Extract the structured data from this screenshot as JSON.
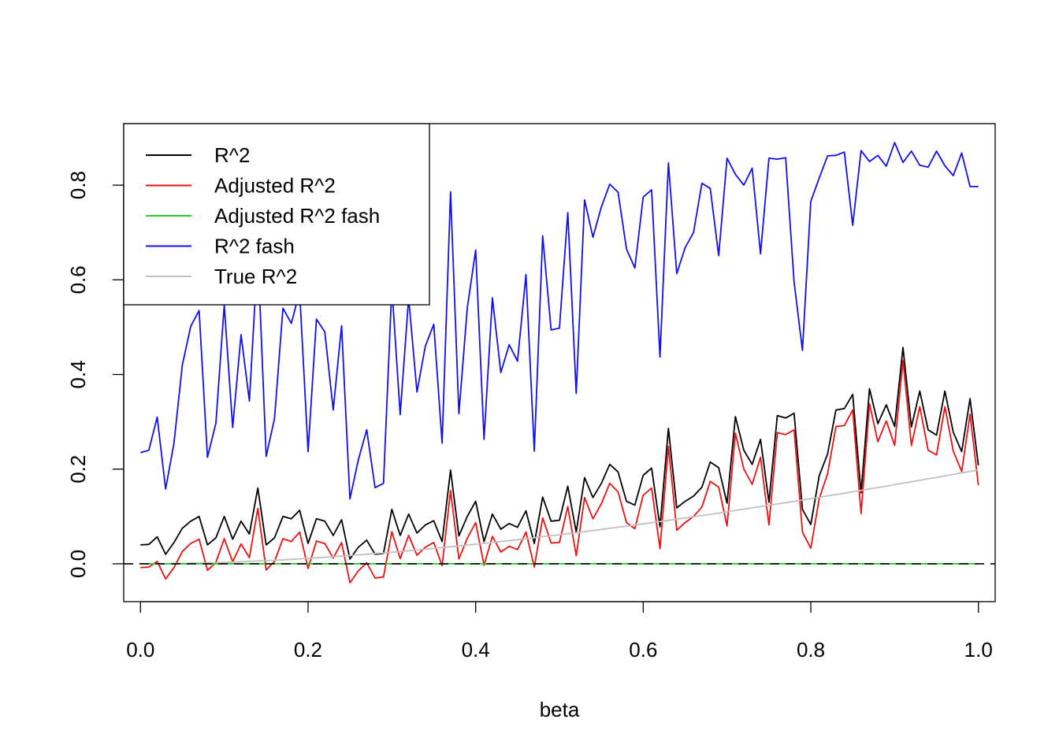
{
  "chart_data": {
    "type": "line",
    "title": "",
    "xlabel": "beta",
    "ylabel": "",
    "xlim": [
      -0.02,
      1.02
    ],
    "ylim": [
      -0.08,
      0.93
    ],
    "x_ticks": [
      0.0,
      0.2,
      0.4,
      0.6,
      0.8,
      1.0
    ],
    "x_tick_labels": [
      "0.0",
      "0.2",
      "0.4",
      "0.6",
      "0.8",
      "1.0"
    ],
    "y_ticks": [
      0.0,
      0.2,
      0.4,
      0.6,
      0.8
    ],
    "y_tick_labels": [
      "0.0",
      "0.2",
      "0.4",
      "0.6",
      "0.8"
    ],
    "grid": false,
    "legend_position": "top-left",
    "reference_line": {
      "y": 0,
      "style": "dashed",
      "color": "#000000"
    },
    "x": [
      0.0,
      0.01,
      0.02,
      0.03,
      0.04,
      0.05,
      0.06,
      0.07,
      0.08,
      0.09,
      0.1,
      0.11,
      0.12,
      0.13,
      0.14,
      0.15,
      0.16,
      0.17,
      0.18,
      0.19,
      0.2,
      0.21,
      0.22,
      0.23,
      0.24,
      0.25,
      0.26,
      0.27,
      0.28,
      0.29,
      0.3,
      0.31,
      0.32,
      0.33,
      0.34,
      0.35,
      0.36,
      0.37,
      0.38,
      0.39,
      0.4,
      0.41,
      0.42,
      0.43,
      0.44,
      0.45,
      0.46,
      0.47,
      0.48,
      0.49,
      0.5,
      0.51,
      0.52,
      0.53,
      0.54,
      0.55,
      0.56,
      0.57,
      0.58,
      0.59,
      0.6,
      0.61,
      0.62,
      0.63,
      0.64,
      0.65,
      0.66,
      0.67,
      0.68,
      0.69,
      0.7,
      0.71,
      0.72,
      0.73,
      0.74,
      0.75,
      0.76,
      0.77,
      0.78,
      0.79,
      0.8,
      0.81,
      0.82,
      0.83,
      0.84,
      0.85,
      0.86,
      0.87,
      0.88,
      0.89,
      0.9,
      0.91,
      0.92,
      0.93,
      0.94,
      0.95,
      0.96,
      0.97,
      0.98,
      0.99,
      1.0
    ],
    "series": [
      {
        "name": "R^2",
        "color": "#000000",
        "values": [
          0.04,
          0.041,
          0.057,
          0.02,
          0.045,
          0.075,
          0.09,
          0.1,
          0.04,
          0.055,
          0.1,
          0.052,
          0.09,
          0.063,
          0.16,
          0.04,
          0.055,
          0.1,
          0.095,
          0.113,
          0.043,
          0.095,
          0.09,
          0.06,
          0.093,
          0.01,
          0.035,
          0.05,
          0.02,
          0.022,
          0.115,
          0.06,
          0.105,
          0.065,
          0.082,
          0.091,
          0.047,
          0.198,
          0.059,
          0.1,
          0.132,
          0.047,
          0.105,
          0.073,
          0.085,
          0.077,
          0.112,
          0.043,
          0.141,
          0.09,
          0.092,
          0.164,
          0.067,
          0.182,
          0.14,
          0.17,
          0.21,
          0.194,
          0.132,
          0.124,
          0.187,
          0.202,
          0.078,
          0.286,
          0.118,
          0.132,
          0.143,
          0.162,
          0.215,
          0.203,
          0.128,
          0.311,
          0.24,
          0.21,
          0.263,
          0.13,
          0.313,
          0.308,
          0.318,
          0.115,
          0.083,
          0.186,
          0.232,
          0.325,
          0.328,
          0.358,
          0.15,
          0.37,
          0.296,
          0.336,
          0.29,
          0.457,
          0.289,
          0.365,
          0.283,
          0.272,
          0.365,
          0.278,
          0.237,
          0.349,
          0.208
        ]
      },
      {
        "name": "Adjusted R^2",
        "color": "#ee1111",
        "values": [
          -0.008,
          -0.007,
          0.005,
          -0.032,
          -0.008,
          0.026,
          0.043,
          0.052,
          -0.014,
          0.003,
          0.053,
          0.004,
          0.042,
          0.013,
          0.117,
          -0.013,
          0.005,
          0.053,
          0.047,
          0.067,
          -0.01,
          0.048,
          0.043,
          0.012,
          0.045,
          -0.04,
          -0.015,
          0.002,
          -0.03,
          -0.028,
          0.068,
          0.011,
          0.06,
          0.018,
          0.035,
          0.045,
          -0.004,
          0.155,
          0.01,
          0.054,
          0.087,
          -0.003,
          0.058,
          0.025,
          0.037,
          0.03,
          0.067,
          -0.007,
          0.097,
          0.044,
          0.045,
          0.121,
          0.017,
          0.14,
          0.095,
          0.127,
          0.17,
          0.152,
          0.087,
          0.074,
          0.145,
          0.16,
          0.032,
          0.248,
          0.071,
          0.087,
          0.1,
          0.12,
          0.174,
          0.162,
          0.08,
          0.276,
          0.2,
          0.168,
          0.225,
          0.082,
          0.277,
          0.273,
          0.283,
          0.067,
          0.033,
          0.138,
          0.19,
          0.29,
          0.292,
          0.325,
          0.106,
          0.338,
          0.258,
          0.302,
          0.25,
          0.43,
          0.25,
          0.332,
          0.24,
          0.23,
          0.332,
          0.238,
          0.195,
          0.316,
          0.166
        ]
      },
      {
        "name": "Adjusted R^2 fash",
        "color": "#22cc22",
        "values": [
          0,
          0,
          0,
          0,
          0,
          0,
          0,
          0,
          0,
          0,
          0,
          0,
          0,
          0,
          0,
          0,
          0,
          0,
          0,
          0,
          0,
          0,
          0,
          0,
          0,
          0,
          0,
          0,
          0,
          0,
          0,
          0,
          0,
          0,
          0,
          0,
          0,
          0,
          0,
          0,
          0,
          0,
          0,
          0,
          0,
          0,
          0,
          0,
          0,
          0,
          0,
          0,
          0,
          0,
          0,
          0,
          0,
          0,
          0,
          0,
          0,
          0,
          0,
          0,
          0,
          0,
          0,
          0,
          0,
          0,
          0,
          0,
          0,
          0,
          0,
          0,
          0,
          0,
          0,
          0,
          0,
          0,
          0,
          0,
          0,
          0,
          0,
          0,
          0,
          0,
          0,
          0,
          0,
          0,
          0,
          0,
          0,
          0,
          0,
          0,
          0
        ]
      },
      {
        "name": "R^2 fash",
        "color": "#1010ee",
        "values": [
          0.235,
          0.24,
          0.31,
          0.158,
          0.255,
          0.42,
          0.502,
          0.535,
          0.225,
          0.297,
          0.547,
          0.288,
          0.484,
          0.344,
          0.66,
          0.227,
          0.307,
          0.54,
          0.508,
          0.575,
          0.237,
          0.517,
          0.49,
          0.325,
          0.503,
          0.137,
          0.22,
          0.283,
          0.161,
          0.17,
          0.585,
          0.315,
          0.562,
          0.363,
          0.46,
          0.506,
          0.255,
          0.786,
          0.317,
          0.54,
          0.663,
          0.263,
          0.562,
          0.404,
          0.463,
          0.428,
          0.611,
          0.238,
          0.693,
          0.494,
          0.498,
          0.742,
          0.36,
          0.769,
          0.69,
          0.754,
          0.802,
          0.785,
          0.665,
          0.625,
          0.775,
          0.79,
          0.437,
          0.847,
          0.613,
          0.668,
          0.7,
          0.804,
          0.793,
          0.651,
          0.857,
          0.823,
          0.8,
          0.836,
          0.655,
          0.857,
          0.855,
          0.858,
          0.595,
          0.451,
          0.766,
          0.815,
          0.862,
          0.863,
          0.87,
          0.715,
          0.873,
          0.85,
          0.863,
          0.84,
          0.89,
          0.848,
          0.872,
          0.842,
          0.838,
          0.872,
          0.841,
          0.82,
          0.868,
          0.797,
          0.797
        ]
      },
      {
        "name": "True R^2",
        "color": "#c0c0c0",
        "values": [
          0.0,
          0.0,
          0.0001,
          0.0003,
          0.0005,
          0.0008,
          0.0011,
          0.0015,
          0.0019,
          0.0024,
          0.003,
          0.0036,
          0.0043,
          0.005,
          0.0058,
          0.0066,
          0.0075,
          0.0084,
          0.0094,
          0.0104,
          0.0115,
          0.0126,
          0.0137,
          0.0149,
          0.0162,
          0.0175,
          0.0188,
          0.0202,
          0.0216,
          0.023,
          0.0245,
          0.026,
          0.0276,
          0.0292,
          0.0308,
          0.0325,
          0.0342,
          0.0359,
          0.0377,
          0.0395,
          0.0413,
          0.0432,
          0.0451,
          0.047,
          0.049,
          0.051,
          0.053,
          0.0551,
          0.0572,
          0.0593,
          0.0614,
          0.0636,
          0.0658,
          0.068,
          0.0703,
          0.0726,
          0.0749,
          0.0772,
          0.0796,
          0.082,
          0.0844,
          0.0868,
          0.0893,
          0.0918,
          0.0943,
          0.0968,
          0.0994,
          0.102,
          0.1046,
          0.1072,
          0.1099,
          0.1126,
          0.1153,
          0.118,
          0.1207,
          0.1235,
          0.1263,
          0.1291,
          0.1319,
          0.1347,
          0.1376,
          0.1405,
          0.1434,
          0.1463,
          0.1492,
          0.1522,
          0.1551,
          0.1581,
          0.1611,
          0.1641,
          0.1672,
          0.1702,
          0.1733,
          0.1764,
          0.1795,
          0.1826,
          0.1857,
          0.1889,
          0.192,
          0.1952,
          0.1984
        ]
      }
    ]
  }
}
